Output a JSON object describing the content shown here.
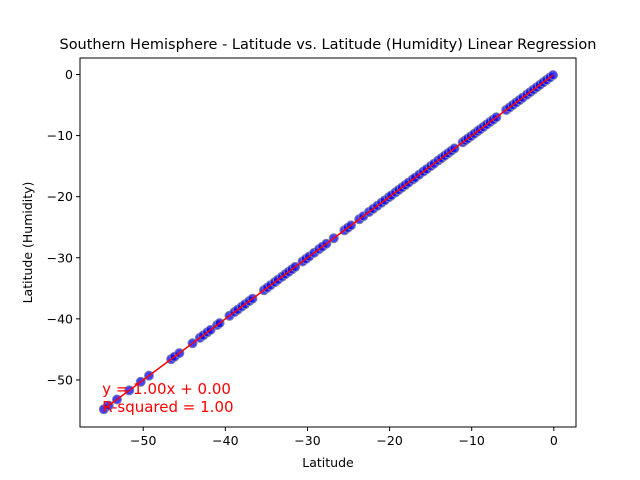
{
  "chart_data": {
    "type": "scatter",
    "title": "Southern Hemisphere - Latitude vs. Latitude (Humidity) Linear Regression",
    "xlabel": "Latitude",
    "ylabel": "Latitude (Humidity)",
    "xlim": [
      -57.7,
      2.7
    ],
    "ylim": [
      -57.7,
      2.7
    ],
    "xticks": [
      -50,
      -40,
      -30,
      -20,
      -10,
      0
    ],
    "xtick_labels": [
      "−50",
      "−40",
      "−30",
      "−20",
      "−10",
      "0"
    ],
    "yticks": [
      0,
      -10,
      -20,
      -30,
      -40,
      -50
    ],
    "ytick_labels": [
      "0",
      "−10",
      "−20",
      "−30",
      "−40",
      "−50"
    ],
    "grid": false,
    "legend": "none",
    "series": [
      {
        "marker_color": "#0000ff",
        "marker_edge_color": "#7e7ea8",
        "x": [
          -54.8,
          -54.2,
          -53.2,
          -51.7,
          -50.3,
          -49.3,
          -46.6,
          -46.2,
          -45.6,
          -44.0,
          -43.1,
          -42.7,
          -42.2,
          -41.8,
          -41.0,
          -40.7,
          -39.5,
          -38.9,
          -38.5,
          -38.0,
          -37.6,
          -37.1,
          -36.7,
          -35.3,
          -34.9,
          -34.5,
          -34.0,
          -33.6,
          -33.1,
          -32.7,
          -32.3,
          -31.9,
          -31.5,
          -30.6,
          -30.2,
          -29.8,
          -29.2,
          -28.6,
          -28.2,
          -27.7,
          -26.8,
          -25.5,
          -25.1,
          -24.7,
          -23.7,
          -23.2,
          -22.5,
          -22.0,
          -21.5,
          -21.0,
          -20.6,
          -20.1,
          -19.8,
          -19.3,
          -18.9,
          -18.5,
          -18.1,
          -17.7,
          -17.2,
          -16.9,
          -16.4,
          -15.9,
          -15.5,
          -15.0,
          -14.6,
          -14.1,
          -13.7,
          -13.3,
          -12.9,
          -12.5,
          -12.1,
          -11.1,
          -10.8,
          -10.5,
          -10.1,
          -9.7,
          -9.3,
          -9.0,
          -8.6,
          -8.2,
          -7.8,
          -7.4,
          -7.0,
          -5.8,
          -5.4,
          -5.0,
          -4.6,
          -4.2,
          -3.8,
          -3.3,
          -2.9,
          -2.5,
          -2.1,
          -1.7,
          -1.3,
          -0.9,
          -0.5,
          -0.1
        ],
        "y": [
          -54.8,
          -54.2,
          -53.2,
          -51.7,
          -50.3,
          -49.3,
          -46.6,
          -46.2,
          -45.6,
          -44.0,
          -43.1,
          -42.7,
          -42.2,
          -41.8,
          -41.0,
          -40.7,
          -39.5,
          -38.9,
          -38.5,
          -38.0,
          -37.6,
          -37.1,
          -36.7,
          -35.3,
          -34.9,
          -34.5,
          -34.0,
          -33.6,
          -33.1,
          -32.7,
          -32.3,
          -31.9,
          -31.5,
          -30.6,
          -30.2,
          -29.8,
          -29.2,
          -28.6,
          -28.2,
          -27.7,
          -26.8,
          -25.5,
          -25.1,
          -24.7,
          -23.7,
          -23.2,
          -22.5,
          -22.0,
          -21.5,
          -21.0,
          -20.6,
          -20.1,
          -19.8,
          -19.3,
          -18.9,
          -18.5,
          -18.1,
          -17.7,
          -17.2,
          -16.9,
          -16.4,
          -15.9,
          -15.5,
          -15.0,
          -14.6,
          -14.1,
          -13.7,
          -13.3,
          -12.9,
          -12.5,
          -12.1,
          -11.1,
          -10.8,
          -10.5,
          -10.1,
          -9.7,
          -9.3,
          -9.0,
          -8.6,
          -8.2,
          -7.8,
          -7.4,
          -7.0,
          -5.8,
          -5.4,
          -5.0,
          -4.6,
          -4.2,
          -3.8,
          -3.3,
          -2.9,
          -2.5,
          -2.1,
          -1.7,
          -1.3,
          -0.9,
          -0.5,
          -0.1
        ]
      }
    ],
    "regression": {
      "slope": 1.0,
      "intercept": 0.0,
      "x_range": [
        -54.8,
        -0.1
      ],
      "color": "#ff0000"
    },
    "annotations": [
      {
        "text": "y = 1.00x + 0.00",
        "x": -55,
        "y": -51.5,
        "color": "#ff0000"
      },
      {
        "text": "R-squared = 1.00",
        "x": -55,
        "y": -54.4,
        "color": "#ff0000"
      }
    ]
  }
}
